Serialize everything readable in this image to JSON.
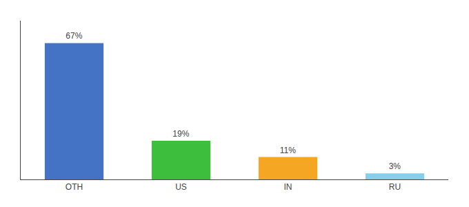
{
  "chart_data": {
    "type": "bar",
    "categories": [
      "OTH",
      "US",
      "IN",
      "RU"
    ],
    "values": [
      67,
      19,
      11,
      3
    ],
    "value_labels": [
      "67%",
      "19%",
      "11%",
      "3%"
    ],
    "data_labels": true,
    "colors": [
      "#4472c4",
      "#3dbe3d",
      "#f5a623",
      "#87ceeb"
    ],
    "ylim": [
      0,
      78
    ],
    "tick_labels": "x",
    "grid": false
  }
}
